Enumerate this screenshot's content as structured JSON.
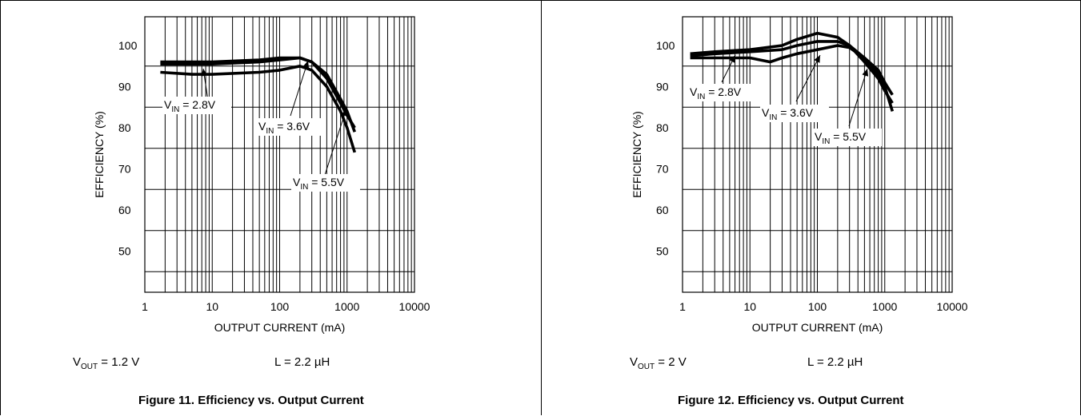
{
  "charts": [
    {
      "vout_prefix": "V",
      "vout_sub": "OUT",
      "vout_value": " = 1.2 V",
      "inductor": "L = 2.2 µH",
      "caption": "Figure 11. Efficiency vs. Output Current"
    },
    {
      "vout_prefix": "V",
      "vout_sub": "OUT",
      "vout_value": " = 2 V",
      "inductor": "L = 2.2 µH",
      "caption": "Figure 12. Efficiency vs. Output Current"
    }
  ],
  "chart_data": [
    {
      "type": "line",
      "xlabel": "OUTPUT CURRENT (mA)",
      "ylabel": "EFFICIENCY (%)",
      "x_scale": "log",
      "xlim": [
        1,
        10000
      ],
      "ylim": [
        40,
        107
      ],
      "x_ticks": [
        "1",
        "10",
        "100",
        "1000",
        "10000"
      ],
      "y_ticks": [
        "50",
        "60",
        "70",
        "80",
        "90",
        "100"
      ],
      "grid": true,
      "series": [
        {
          "name": "V_IN = 2.8V",
          "x": [
            1.7,
            5,
            10,
            50,
            100,
            200,
            300,
            500,
            800,
            1000,
            1300
          ],
          "y": [
            96,
            96,
            96,
            96.5,
            97,
            97,
            96,
            92,
            86,
            83,
            80
          ]
        },
        {
          "name": "V_IN = 3.6V",
          "x": [
            1.7,
            5,
            10,
            50,
            100,
            200,
            300,
            500,
            800,
            1000,
            1300
          ],
          "y": [
            95.5,
            95.5,
            95.5,
            96,
            96.5,
            97,
            96,
            93,
            87,
            84,
            79
          ]
        },
        {
          "name": "V_IN = 5.5V",
          "x": [
            1.7,
            5,
            10,
            50,
            100,
            200,
            300,
            500,
            800,
            1000,
            1300
          ],
          "y": [
            93.5,
            93,
            93,
            93.5,
            94,
            95,
            94,
            90,
            84,
            80,
            74
          ]
        }
      ],
      "annotations": [
        {
          "sub": "IN",
          "value": " = 2.8V"
        },
        {
          "sub": "IN",
          "value": " = 3.6V"
        },
        {
          "sub": "IN",
          "value": " = 5.5V"
        }
      ]
    },
    {
      "type": "line",
      "xlabel": "OUTPUT CURRENT (mA)",
      "ylabel": "EFFICIENCY (%)",
      "x_scale": "log",
      "xlim": [
        1,
        10000
      ],
      "ylim": [
        40,
        107
      ],
      "x_ticks": [
        "1",
        "10",
        "100",
        "1000",
        "10000"
      ],
      "y_ticks": [
        "50",
        "60",
        "70",
        "80",
        "90",
        "100"
      ],
      "grid": true,
      "series": [
        {
          "name": "V_IN = 2.8V",
          "x": [
            1.3,
            3,
            10,
            30,
            50,
            100,
            200,
            300,
            500,
            800,
            1000,
            1300
          ],
          "y": [
            98,
            98.5,
            99,
            100,
            101.5,
            103,
            102,
            100,
            96,
            92,
            89,
            86
          ]
        },
        {
          "name": "V_IN = 3.6V",
          "x": [
            1.3,
            3,
            10,
            30,
            50,
            100,
            200,
            300,
            500,
            800,
            1000,
            1300
          ],
          "y": [
            97.5,
            98,
            98.5,
            99,
            100,
            101,
            101,
            100,
            97,
            93,
            90,
            84
          ]
        },
        {
          "name": "V_IN = 5.5V",
          "x": [
            1.3,
            3,
            10,
            20,
            30,
            50,
            100,
            200,
            300,
            500,
            800,
            1000,
            1300
          ],
          "y": [
            97,
            97,
            97,
            96,
            97,
            98,
            99,
            100,
            99.5,
            97,
            94,
            91,
            88
          ]
        }
      ],
      "annotations": [
        {
          "sub": "IN",
          "value": " = 2.8V"
        },
        {
          "sub": "IN",
          "value": " = 3.6V"
        },
        {
          "sub": "IN",
          "value": " = 5.5V"
        }
      ]
    }
  ]
}
